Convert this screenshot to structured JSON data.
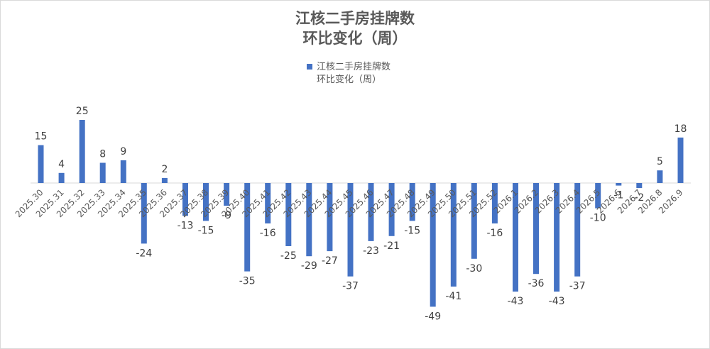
{
  "chart_data": {
    "type": "bar",
    "title_line1": "江核二手房挂牌数",
    "title_line2": "环比变化（周）",
    "legend_line1": "江核二手房挂牌数",
    "legend_line2": "环比变化（周）",
    "bar_color": "#4472c4",
    "label_color": "#404040",
    "tick_color": "#595959",
    "categories": [
      "2025.30",
      "2025.31",
      "2025.32",
      "2025.33",
      "2025.34",
      "2025.35",
      "2025.36",
      "2025.37",
      "2025.38",
      "2025.39",
      "2025.40",
      "2025.41",
      "2025.42",
      "2025.43",
      "2025.44",
      "2025.45",
      "2025.46",
      "2025.47",
      "2025.48",
      "2025.49",
      "2025.50",
      "2025.51",
      "2025.52",
      "2026.1",
      "2026.2",
      "2026.3",
      "2026.4",
      "2026.5",
      "2026.6",
      "2026.7",
      "2026.8",
      "2026.9"
    ],
    "values": [
      15,
      4,
      25,
      8,
      9,
      -24,
      2,
      -13,
      -15,
      -9,
      -35,
      -16,
      -25,
      -29,
      -27,
      -37,
      -23,
      -21,
      -15,
      -49,
      -41,
      -30,
      -16,
      -43,
      -36,
      -43,
      -37,
      -10,
      -1,
      -2,
      5,
      18
    ],
    "ylim": [
      -49,
      25
    ],
    "xlabel": "",
    "ylabel": "",
    "grid": false
  }
}
